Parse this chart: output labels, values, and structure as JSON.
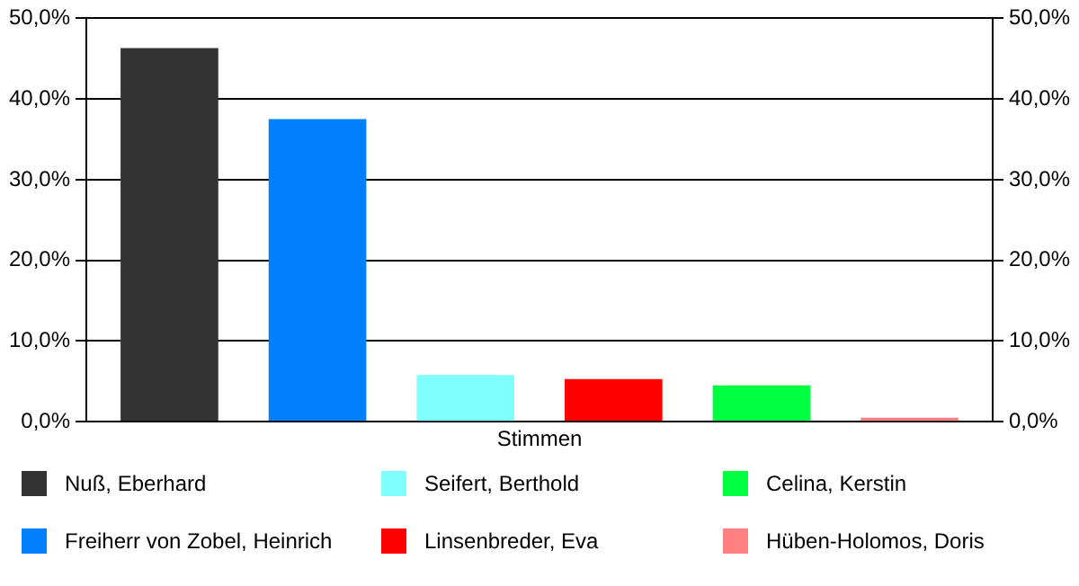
{
  "chart_data": {
    "type": "bar",
    "categories": [
      "Stimmen"
    ],
    "series": [
      {
        "name": "Nuß, Eberhard",
        "color": "#333333",
        "values": [
          46.3
        ]
      },
      {
        "name": "Freiherr von Zobel, Heinrich",
        "color": "#0080ff",
        "values": [
          37.5
        ]
      },
      {
        "name": "Seifert, Berthold",
        "color": "#80ffff",
        "values": [
          5.8
        ]
      },
      {
        "name": "Linsenbreder, Eva",
        "color": "#ff0000",
        "values": [
          5.3
        ]
      },
      {
        "name": "Celina, Kerstin",
        "color": "#00ff40",
        "values": [
          4.5
        ]
      },
      {
        "name": "Hüben-Holomos, Doris",
        "color": "#ff8080",
        "values": [
          0.5
        ]
      }
    ],
    "ylim": [
      0,
      50
    ],
    "yticks": [
      {
        "value": 0,
        "label": "0,0%"
      },
      {
        "value": 10,
        "label": "10,0%"
      },
      {
        "value": 20,
        "label": "20,0%"
      },
      {
        "value": 30,
        "label": "30,0%"
      },
      {
        "value": 40,
        "label": "40,0%"
      },
      {
        "value": 50,
        "label": "50,0%"
      }
    ],
    "grid": "y",
    "legend": "bottom"
  }
}
